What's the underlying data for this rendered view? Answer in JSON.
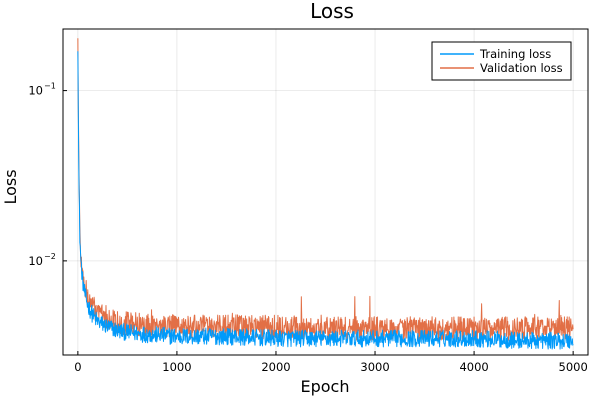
{
  "chart_data": {
    "type": "line",
    "title": "Loss",
    "xlabel": "Epoch",
    "ylabel": "Loss",
    "xlim": [
      -150,
      5150
    ],
    "ylim": [
      0.0028,
      0.23
    ],
    "yscale": "log",
    "grid": true,
    "legend_position": "top-right",
    "x_ticks": [
      0,
      1000,
      2000,
      3000,
      4000,
      5000
    ],
    "x_tick_labels": [
      "0",
      "1000",
      "2000",
      "3000",
      "4000",
      "5000"
    ],
    "y_ticks": [
      0.01,
      0.1
    ],
    "y_tick_labels": [
      {
        "base": "10",
        "exp": "−2"
      },
      {
        "base": "10",
        "exp": "−1"
      }
    ],
    "series": [
      {
        "name": "Training loss",
        "color": "#009AFA",
        "x": [
          0,
          10,
          20,
          30,
          50,
          75,
          100,
          150,
          200,
          300,
          400,
          500,
          700,
          1000,
          1500,
          2000,
          2500,
          3000,
          3500,
          4000,
          4500,
          5000
        ],
        "y": [
          0.19,
          0.03,
          0.014,
          0.01,
          0.0075,
          0.0062,
          0.0055,
          0.0048,
          0.0044,
          0.0041,
          0.0039,
          0.0038,
          0.0037,
          0.0036,
          0.0036,
          0.0035,
          0.0035,
          0.0035,
          0.0035,
          0.0035,
          0.0034,
          0.0034
        ]
      },
      {
        "name": "Validation loss",
        "color": "#E26F46",
        "x": [
          0,
          10,
          20,
          30,
          50,
          75,
          100,
          150,
          200,
          300,
          400,
          500,
          700,
          1000,
          1500,
          2000,
          2500,
          3000,
          3500,
          4000,
          4500,
          5000
        ],
        "y": [
          0.2,
          0.035,
          0.015,
          0.0105,
          0.008,
          0.0068,
          0.0061,
          0.0054,
          0.005,
          0.0046,
          0.0044,
          0.0043,
          0.0042,
          0.0041,
          0.0041,
          0.0041,
          0.004,
          0.004,
          0.004,
          0.004,
          0.004,
          0.004
        ]
      }
    ]
  }
}
